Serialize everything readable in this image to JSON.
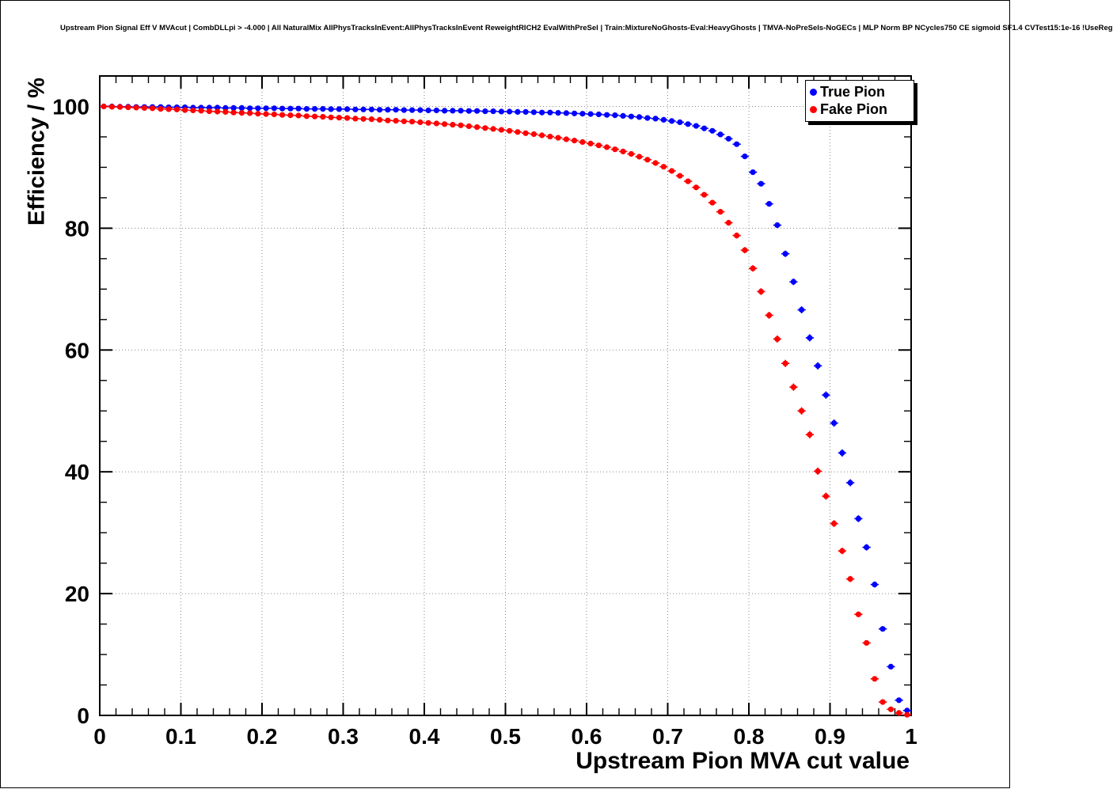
{
  "chart_data": {
    "type": "scatter",
    "title": "Upstream Pion Signal Eff V MVAcut | CombDLLpi > -4.000 | All NaturalMix AllPhysTracksInEvent:AllPhysTracksInEvent ReweightRICH2 EvalWithPreSel | Train:MixtureNoGhosts-Eval:HeavyGhosts | TMVA-NoPreSels-NoGECs | MLP Norm BP NCycles750 CE sigmoid SF1.4 CVTest15:1e-16 !UseReg",
    "xlabel": "Upstream Pion MVA cut value",
    "ylabel": "Efficiency / %",
    "xlim": [
      0,
      1
    ],
    "ylim": [
      0,
      105
    ],
    "x_ticks": [
      0,
      0.1,
      0.2,
      0.3,
      0.4,
      0.5,
      0.6,
      0.7,
      0.8,
      0.9,
      1
    ],
    "y_ticks": [
      0,
      20,
      40,
      60,
      80,
      100
    ],
    "x_minor_step": 0.02,
    "y_minor_step": 5,
    "grid": "dotted",
    "marker": "filled-circle-with-error-bars",
    "legend_position": "top-right",
    "x_start": 0.005,
    "x_step": 0.01,
    "series": [
      {
        "name": "True Pion",
        "color": "#0000ff",
        "values": [
          100,
          100,
          99.95,
          99.95,
          99.9,
          99.9,
          99.9,
          99.9,
          99.85,
          99.85,
          99.85,
          99.8,
          99.8,
          99.8,
          99.8,
          99.75,
          99.75,
          99.75,
          99.7,
          99.7,
          99.7,
          99.7,
          99.65,
          99.65,
          99.65,
          99.6,
          99.6,
          99.6,
          99.55,
          99.55,
          99.55,
          99.5,
          99.5,
          99.5,
          99.45,
          99.45,
          99.45,
          99.4,
          99.4,
          99.4,
          99.35,
          99.35,
          99.3,
          99.3,
          99.3,
          99.25,
          99.25,
          99.2,
          99.2,
          99.15,
          99.15,
          99.1,
          99.1,
          99.05,
          99,
          99,
          98.95,
          98.9,
          98.85,
          98.8,
          98.75,
          98.7,
          98.6,
          98.55,
          98.45,
          98.35,
          98.25,
          98.1,
          98,
          97.8,
          97.6,
          97.4,
          97.1,
          96.8,
          96.4,
          96,
          95.4,
          94.7,
          93.8,
          91.8,
          89.2,
          87.3,
          84,
          80.5,
          75.8,
          71.2,
          66.6,
          62,
          57.4,
          52.6,
          48,
          43.1,
          38.2,
          32.3,
          27.6,
          21.5,
          14.2,
          8,
          2.5,
          0.8
        ]
      },
      {
        "name": "Fake Pion",
        "color": "#ff0000",
        "values": [
          100,
          99.95,
          99.9,
          99.85,
          99.8,
          99.75,
          99.7,
          99.6,
          99.55,
          99.5,
          99.4,
          99.35,
          99.3,
          99.2,
          99.15,
          99.1,
          99,
          98.95,
          98.9,
          98.8,
          98.75,
          98.7,
          98.6,
          98.55,
          98.5,
          98.4,
          98.35,
          98.3,
          98.2,
          98.15,
          98.1,
          98,
          97.95,
          97.9,
          97.8,
          97.7,
          97.65,
          97.55,
          97.5,
          97.4,
          97.3,
          97.2,
          97.1,
          97,
          96.9,
          96.75,
          96.6,
          96.45,
          96.3,
          96.15,
          96,
          95.8,
          95.6,
          95.45,
          95.25,
          95.05,
          94.85,
          94.6,
          94.4,
          94.15,
          93.9,
          93.6,
          93.3,
          92.95,
          92.6,
          92.2,
          91.75,
          91.25,
          90.7,
          90.1,
          89.4,
          88.6,
          87.7,
          86.7,
          85.5,
          84.2,
          82.7,
          80.9,
          78.8,
          76.4,
          73.4,
          69.6,
          65.7,
          61.8,
          57.8,
          53.9,
          50,
          46.1,
          40.1,
          36,
          31.5,
          27,
          22.4,
          16.6,
          11.9,
          6,
          2.2,
          1,
          0.4,
          0.1
        ]
      }
    ]
  }
}
